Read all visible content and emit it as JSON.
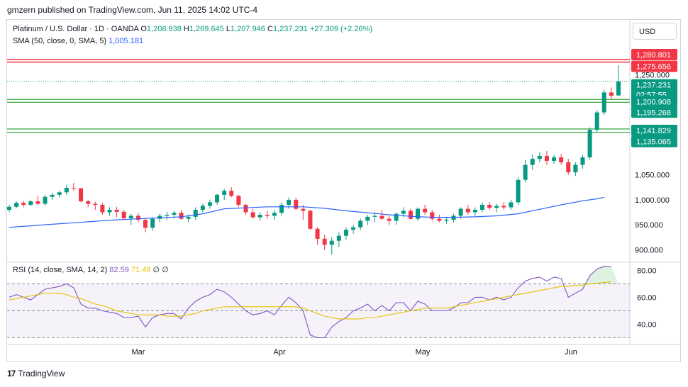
{
  "header": {
    "published": "gmzern published on TradingView.com, Jun 11, 2025 14:02 UTC-4"
  },
  "legend": {
    "symbol": "Platinum / U.S. Dollar · 1D · OANDA",
    "open_label": "O",
    "open": "1,208.938",
    "high_label": "H",
    "high": "1,269.645",
    "low_label": "L",
    "low": "1,207.946",
    "close_label": "C",
    "close": "1,237.231",
    "change": "+27.309 (+2.26%)",
    "sma_label": "SMA (50, close, 0, SMA, 5)",
    "sma_value": "1,005.181",
    "rsi_label": "RSI (14, close, SMA, 14, 2)",
    "rsi_value": "82.59",
    "rsi_sma": "71.49",
    "rsi_div1": "∅",
    "rsi_div2": "∅"
  },
  "currency": "USD",
  "footer": {
    "brand": "TradingView",
    "logo_glyph": "17"
  },
  "colors": {
    "up": "#089981",
    "down": "#f23645",
    "sma": "#2962ff",
    "rsi": "#7e57c2",
    "rsi_sma": "#e6c200"
  },
  "chart_data": [
    {
      "type": "candlestick",
      "title": "Platinum / U.S. Dollar · 1D · OANDA",
      "x_ticks": [
        "Mar",
        "Apr",
        "May",
        "Jun"
      ],
      "y_ticks": [
        900,
        950,
        1000,
        1050,
        1250
      ],
      "y_tick_labels": [
        "900.000",
        "950.000",
        "1,000.000",
        "1,050.000",
        "1,250.000"
      ],
      "ylim": [
        875,
        1295
      ],
      "price_tags": [
        {
          "label": "1,280.801",
          "value": 1280.801,
          "color": "#f23645"
        },
        {
          "label": "1,275.656",
          "value": 1275.656,
          "color": "#f23645"
        },
        {
          "label": "1,237.231",
          "value": 1237.231,
          "color": "#089981",
          "extra": "02:57:55"
        },
        {
          "label": "1,200.908",
          "value": 1200.908,
          "color": "#089981"
        },
        {
          "label": "1,195.268",
          "value": 1195.268,
          "color": "#089981"
        },
        {
          "label": "1,141.829",
          "value": 1141.829,
          "color": "#089981"
        },
        {
          "label": "1,135.065",
          "value": 1135.065,
          "color": "#089981"
        }
      ],
      "levels": [
        1280.801,
        1275.656,
        1200.908,
        1195.268,
        1141.829,
        1135.065
      ],
      "candles": [
        [
          980,
          990,
          975,
          986
        ],
        [
          986,
          997,
          983,
          994
        ],
        [
          994,
          998,
          985,
          990
        ],
        [
          990,
          1000,
          987,
          997
        ],
        [
          997,
          1008,
          990,
          992
        ],
        [
          992,
          1010,
          988,
          1006
        ],
        [
          1006,
          1014,
          1000,
          1010
        ],
        [
          1010,
          1018,
          1005,
          1015
        ],
        [
          1015,
          1030,
          1010,
          1024
        ],
        [
          1024,
          1034,
          1018,
          1023
        ],
        [
          1023,
          1024,
          995,
          997
        ],
        [
          997,
          1000,
          985,
          992
        ],
        [
          992,
          996,
          980,
          990
        ],
        [
          990,
          994,
          970,
          975
        ],
        [
          975,
          985,
          968,
          980
        ],
        [
          980,
          986,
          965,
          976
        ],
        [
          976,
          980,
          960,
          963
        ],
        [
          963,
          972,
          950,
          968
        ],
        [
          968,
          974,
          955,
          960
        ],
        [
          960,
          962,
          935,
          944
        ],
        [
          944,
          965,
          938,
          962
        ],
        [
          962,
          972,
          955,
          968
        ],
        [
          968,
          976,
          960,
          970
        ],
        [
          970,
          978,
          963,
          974
        ],
        [
          974,
          980,
          960,
          962
        ],
        [
          962,
          970,
          955,
          966
        ],
        [
          966,
          985,
          960,
          980
        ],
        [
          980,
          992,
          975,
          988
        ],
        [
          988,
          1000,
          982,
          995
        ],
        [
          995,
          1012,
          990,
          1010
        ],
        [
          1010,
          1022,
          1000,
          1018
        ],
        [
          1018,
          1025,
          1005,
          1008
        ],
        [
          1008,
          1010,
          985,
          990
        ],
        [
          990,
          992,
          970,
          975
        ],
        [
          975,
          982,
          962,
          965
        ],
        [
          965,
          975,
          958,
          970
        ],
        [
          970,
          978,
          962,
          968
        ],
        [
          968,
          980,
          960,
          974
        ],
        [
          974,
          995,
          968,
          990
        ],
        [
          990,
          1005,
          982,
          1000
        ],
        [
          1000,
          1004,
          980,
          982
        ],
        [
          982,
          990,
          960,
          978
        ],
        [
          978,
          980,
          940,
          942
        ],
        [
          942,
          945,
          910,
          922
        ],
        [
          922,
          930,
          900,
          910
        ],
        [
          910,
          925,
          890,
          918
        ],
        [
          918,
          935,
          905,
          928
        ],
        [
          928,
          945,
          920,
          940
        ],
        [
          940,
          950,
          932,
          945
        ],
        [
          945,
          962,
          940,
          958
        ],
        [
          958,
          970,
          950,
          966
        ],
        [
          966,
          975,
          955,
          968
        ],
        [
          968,
          980,
          960,
          962
        ],
        [
          962,
          968,
          950,
          958
        ],
        [
          958,
          975,
          950,
          972
        ],
        [
          972,
          985,
          965,
          978
        ],
        [
          978,
          982,
          960,
          962
        ],
        [
          962,
          985,
          958,
          982
        ],
        [
          982,
          990,
          970,
          975
        ],
        [
          975,
          980,
          958,
          962
        ],
        [
          962,
          970,
          955,
          958
        ],
        [
          958,
          965,
          952,
          960
        ],
        [
          960,
          972,
          955,
          968
        ],
        [
          968,
          985,
          962,
          982
        ],
        [
          982,
          990,
          970,
          975
        ],
        [
          975,
          985,
          965,
          980
        ],
        [
          980,
          995,
          975,
          990
        ],
        [
          990,
          996,
          980,
          984
        ],
        [
          984,
          992,
          975,
          988
        ],
        [
          988,
          995,
          980,
          985
        ],
        [
          985,
          1000,
          980,
          995
        ],
        [
          995,
          1045,
          990,
          1040
        ],
        [
          1040,
          1080,
          1035,
          1070
        ],
        [
          1070,
          1090,
          1060,
          1082
        ],
        [
          1082,
          1095,
          1075,
          1088
        ],
        [
          1088,
          1098,
          1070,
          1078
        ],
        [
          1078,
          1090,
          1072,
          1085
        ],
        [
          1085,
          1092,
          1070,
          1075
        ],
        [
          1075,
          1082,
          1050,
          1055
        ],
        [
          1055,
          1075,
          1048,
          1070
        ],
        [
          1070,
          1090,
          1062,
          1085
        ],
        [
          1085,
          1145,
          1080,
          1140
        ],
        [
          1140,
          1180,
          1135,
          1175
        ],
        [
          1175,
          1220,
          1170,
          1215
        ],
        [
          1215,
          1225,
          1200,
          1208
        ],
        [
          1208.938,
          1269.645,
          1207.946,
          1237.231
        ]
      ],
      "sma50": [
        [
          0,
          945
        ],
        [
          3,
          948
        ],
        [
          6,
          951
        ],
        [
          9,
          954
        ],
        [
          12,
          957
        ],
        [
          15,
          960
        ],
        [
          18,
          962
        ],
        [
          21,
          964
        ],
        [
          24,
          966
        ],
        [
          27,
          972
        ],
        [
          30,
          982
        ],
        [
          33,
          984
        ],
        [
          36,
          986
        ],
        [
          38,
          986
        ],
        [
          41,
          986
        ],
        [
          44,
          983
        ],
        [
          47,
          978
        ],
        [
          50,
          974
        ],
        [
          53,
          970
        ],
        [
          56,
          967
        ],
        [
          59,
          965
        ],
        [
          62,
          965
        ],
        [
          65,
          966
        ],
        [
          68,
          968
        ],
        [
          71,
          972
        ],
        [
          74,
          981
        ],
        [
          77,
          990
        ],
        [
          80,
          998
        ],
        [
          82,
          1002
        ],
        [
          83,
          1005.181
        ]
      ]
    },
    {
      "type": "line",
      "title": "RSI (14, close, SMA, 14, 2)",
      "y_ticks": [
        40,
        60,
        80
      ],
      "y_tick_labels": [
        "40.00",
        "60.00",
        "80.00"
      ],
      "bands": {
        "upper": 70,
        "middle": 50,
        "lower": 30
      },
      "ylim": [
        25,
        86
      ],
      "series": [
        {
          "name": "RSI",
          "values": [
            60,
            62,
            60,
            58,
            62,
            66,
            67,
            68,
            70,
            67,
            55,
            52,
            52,
            50,
            49,
            48,
            45,
            45,
            46,
            38,
            45,
            47,
            48,
            48,
            44,
            52,
            57,
            60,
            62,
            66,
            64,
            60,
            55,
            50,
            47,
            48,
            50,
            47,
            54,
            60,
            56,
            50,
            32,
            30,
            30,
            38,
            42,
            45,
            50,
            52,
            55,
            50,
            54,
            50,
            56,
            56,
            50,
            57,
            55,
            50,
            50,
            50,
            52,
            56,
            56,
            60,
            60,
            58,
            60,
            58,
            60,
            67,
            72,
            74,
            75,
            72,
            75,
            74,
            60,
            63,
            66,
            76,
            81,
            83,
            82.59
          ]
        },
        {
          "name": "RSI SMA",
          "values": [
            58,
            59,
            60,
            61,
            62,
            63,
            63,
            63,
            62,
            60,
            59,
            57,
            55,
            54,
            52,
            50,
            49,
            48,
            47,
            47,
            47,
            47,
            46,
            46,
            46,
            47,
            48,
            50,
            51,
            52,
            53,
            53,
            53,
            53,
            53,
            53,
            53,
            53,
            53,
            53,
            53,
            52,
            50,
            48,
            46,
            45,
            44,
            44,
            44,
            44,
            45,
            45,
            46,
            47,
            48,
            49,
            50,
            51,
            52,
            52,
            52,
            52,
            53,
            54,
            55,
            56,
            57,
            58,
            59,
            60,
            61,
            62,
            63,
            64,
            65,
            66,
            67,
            68,
            68,
            69,
            69,
            70,
            70.5,
            71,
            71.49
          ]
        }
      ]
    }
  ]
}
